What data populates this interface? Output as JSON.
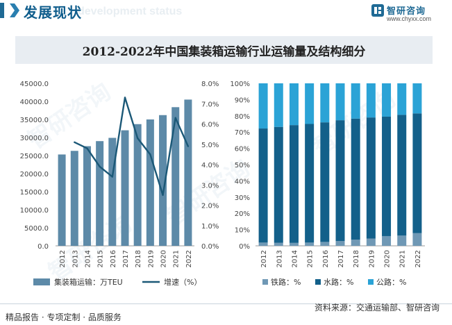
{
  "header": {
    "title": "发展现状",
    "ghost": "development status"
  },
  "logo": {
    "name": "智研咨询",
    "url": "www.chyxx.com"
  },
  "watermark_text": "智研咨询",
  "chart_title": "2012-2022年中国集装箱运输行业运输量及结构细分",
  "colors": {
    "bar": "#5d8aa8",
    "line": "#1b5877",
    "rail": "#6f98b5",
    "water": "#13608a",
    "road": "#2ba3d6",
    "title_bg": "#e8edf2"
  },
  "chart_data": [
    {
      "type": "bar",
      "categories": [
        "2012",
        "2013",
        "2014",
        "2015",
        "2016",
        "2017",
        "2018",
        "2019",
        "2020",
        "2021",
        "2022"
      ],
      "series": [
        {
          "name": "集装箱运输：万TEU",
          "type": "bar",
          "axis": "left",
          "values": [
            25300,
            26300,
            27600,
            29000,
            29900,
            32000,
            33700,
            35000,
            36200,
            38400,
            40500
          ]
        },
        {
          "name": "增速（%）",
          "type": "line",
          "axis": "right",
          "values": [
            null,
            5.1,
            4.8,
            3.9,
            3.4,
            7.3,
            5.3,
            4.5,
            2.5,
            6.3,
            4.9
          ]
        }
      ],
      "y_left": {
        "min": 0,
        "max": 45000,
        "step": 5000,
        "ticks": [
          "0.0",
          "5000.0",
          "10000.0",
          "15000.0",
          "20000.0",
          "25000.0",
          "30000.0",
          "35000.0",
          "40000.0",
          "45000.0"
        ]
      },
      "y_right": {
        "min": 0,
        "max": 8,
        "step": 1,
        "ticks": [
          "0.0%",
          "1.0%",
          "2.0%",
          "3.0%",
          "4.0%",
          "5.0%",
          "6.0%",
          "7.0%",
          "8.0%"
        ]
      },
      "legend_position": "bottom",
      "grid": false
    },
    {
      "type": "bar",
      "stacked": true,
      "percent": true,
      "categories": [
        "2012",
        "2013",
        "2014",
        "2015",
        "2016",
        "2017",
        "2018",
        "2019",
        "2020",
        "2021",
        "2022"
      ],
      "series": [
        {
          "name": "铁路：%",
          "values": [
            2.0,
            1.9,
            1.8,
            2.0,
            2.4,
            3.0,
            3.8,
            4.5,
            6.0,
            6.3,
            7.8
          ]
        },
        {
          "name": "水路：%",
          "values": [
            70.2,
            71.3,
            72.5,
            73.0,
            73.6,
            74.3,
            74.5,
            74.5,
            73.5,
            74.3,
            73.7
          ]
        },
        {
          "name": "公路：%",
          "values": [
            27.8,
            26.8,
            25.7,
            25.0,
            24.0,
            22.7,
            21.7,
            21.0,
            20.5,
            19.4,
            18.5
          ]
        }
      ],
      "y": {
        "min": 0,
        "max": 100,
        "step": 10,
        "ticks": [
          "0%",
          "10%",
          "20%",
          "30%",
          "40%",
          "50%",
          "60%",
          "70%",
          "80%",
          "90%",
          "100%"
        ]
      },
      "legend_position": "bottom",
      "grid": false
    }
  ],
  "footer": {
    "left": "精品报告 · 专项定制 · 品质服务",
    "source": "资料来源：交通运输部、智研咨询"
  }
}
